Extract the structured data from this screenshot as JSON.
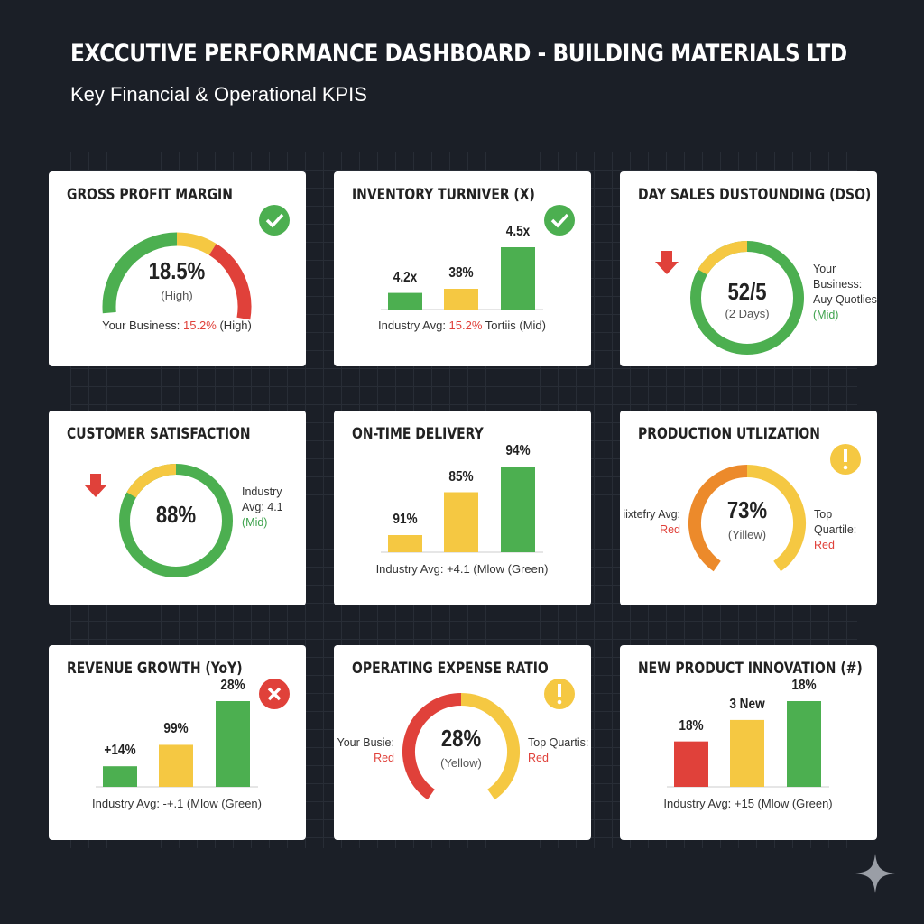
{
  "header": {
    "title": "EXCCUTIVE PERFORMANCE DASHBOARD - BUILDING MATERIALS LTD",
    "subtitle": "Key Financial & Operational KPIS"
  },
  "colors": {
    "green": "#4caf50",
    "yellow": "#f5c842",
    "red": "#e0413a",
    "orange": "#ec8a2b",
    "background": "#1b1f27"
  },
  "cards": [
    {
      "name": "gross-profit-margin",
      "title": "GROSS PROFIT MARGIN",
      "type": "gauge3",
      "status_icon": "check",
      "value": "18.5%",
      "sub": "(High)",
      "footer": [
        "Your Business: ",
        "15.2%",
        " (High)"
      ]
    },
    {
      "name": "inventory-turnover",
      "title": "INVENTORY TURNIVER (X)",
      "type": "bars",
      "status_icon": "check",
      "bars": [
        {
          "label": "4.2x",
          "color": "green",
          "level": 20
        },
        {
          "label": "38%",
          "color": "yellow",
          "level": 25
        },
        {
          "label": "4.5x",
          "color": "green",
          "level": 75
        }
      ],
      "footer": [
        "Industry Avg: ",
        "15.2%",
        " Tortiis (Mid)"
      ]
    },
    {
      "name": "days-sales-outstanding",
      "title": "DAY SALES DUSTOUNDING (DSO)",
      "type": "donut",
      "arrow": "down",
      "value": "52/5",
      "sub": "(2 Days)",
      "side": [
        "Your Business:",
        "Auy Quotlies",
        "(Mid)"
      ]
    },
    {
      "name": "customer-satisfaction",
      "title": "CUSTOMER SATISFACTION",
      "type": "donut",
      "arrow": "down",
      "value": "88%",
      "sub": "",
      "side": [
        "Industry",
        "Avg: 4.1",
        "(Mid)"
      ]
    },
    {
      "name": "on-time-delivery",
      "title": "ON-TIME DELIVERY",
      "type": "bars",
      "bars": [
        {
          "label": "91%",
          "color": "yellow",
          "level": 20
        },
        {
          "label": "85%",
          "color": "yellow",
          "level": 70
        },
        {
          "label": "94%",
          "color": "green",
          "level": 100
        }
      ],
      "footer": [
        "Industry Avg: +4.1 (Mlow (Green)",
        "",
        ""
      ]
    },
    {
      "name": "production-utilization",
      "title": "PRODUCTION UTLIZATION",
      "type": "gauge2",
      "left_color": "orange",
      "status_icon": "warning",
      "value": "73%",
      "sub": "(Yillew)",
      "left": [
        "iixtefry Avg:",
        "Red"
      ],
      "right": [
        "Top Quartile:",
        "Red"
      ]
    },
    {
      "name": "revenue-growth",
      "title": "REVENUE GROWTH (YoY)",
      "type": "bars",
      "status_icon": "x",
      "bars": [
        {
          "label": "+14%",
          "color": "green",
          "level": 24
        },
        {
          "label": "99%",
          "color": "yellow",
          "level": 49
        },
        {
          "label": "28%",
          "color": "green",
          "level": 100
        }
      ],
      "footer": [
        "Industry Avg: -+.1 (Mlow (Green)",
        "",
        ""
      ]
    },
    {
      "name": "operating-expense-ratio",
      "title": "OPERATING EXPENSE RATIO",
      "type": "gauge2",
      "left_color": "red",
      "status_icon": "warning",
      "value": "28%",
      "sub": "(Yellow)",
      "left": [
        "Your Busie:",
        "Red"
      ],
      "right": [
        "Top Quartis:",
        "Red"
      ]
    },
    {
      "name": "new-product-innovation",
      "title": "NEW PRODUCT INNOVATION (#)",
      "type": "bars",
      "bars": [
        {
          "label": "18%",
          "color": "red",
          "level": 53
        },
        {
          "label": "3 New",
          "color": "yellow",
          "level": 78
        },
        {
          "label": "18%",
          "color": "green",
          "level": 100
        }
      ],
      "footer": [
        "Industry Avg: +15 (Mlow (Green)",
        "",
        ""
      ]
    }
  ]
}
